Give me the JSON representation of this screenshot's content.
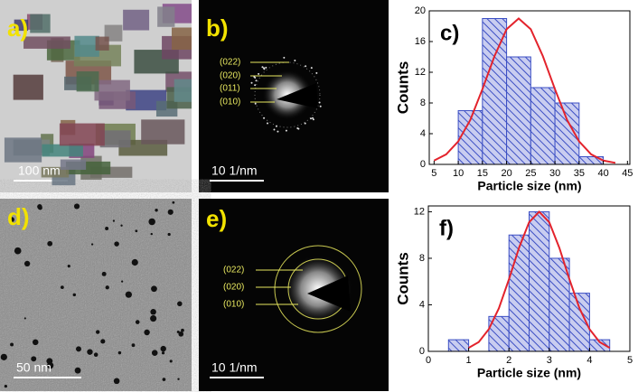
{
  "panels": [
    {
      "label": "a)",
      "scale": "100 nm"
    },
    {
      "label": "b)",
      "scale": "10 1/nm",
      "rings": [
        "(022)",
        "(020)",
        "(011)",
        "(010)"
      ]
    },
    {
      "label": "d)",
      "scale": "50 nm"
    },
    {
      "label": "e)",
      "scale": "10 1/nm",
      "rings": [
        "(022)",
        "(020)",
        "(010)"
      ]
    }
  ],
  "chart_data": [
    {
      "type": "histogram",
      "panel_label": "c)",
      "x_label": "Particle size (nm)",
      "y_label": "Counts",
      "bins": [
        10,
        15,
        20,
        25,
        30,
        35,
        40
      ],
      "counts": [
        7,
        19,
        14,
        10,
        8,
        1
      ],
      "color": "#3c4fc4",
      "fit": {
        "color": "#e3232c",
        "x": [
          5,
          7.5,
          10,
          12.5,
          15,
          17.5,
          20,
          22.5,
          25,
          27.5,
          30,
          32.5,
          35,
          37.5,
          40,
          42.5
        ],
        "values": [
          0.5,
          1.3,
          3.0,
          5.8,
          9.8,
          14.1,
          17.6,
          19,
          17.6,
          14.1,
          9.8,
          5.8,
          3.0,
          1.3,
          0.5,
          0.2
        ]
      },
      "xlim": [
        4,
        45.5
      ],
      "xticks": [
        5,
        10,
        15,
        20,
        25,
        30,
        35,
        40,
        45
      ],
      "ylim": [
        0,
        20
      ],
      "yticks": [
        0,
        4,
        8,
        12,
        16,
        20
      ]
    },
    {
      "type": "histogram",
      "panel_label": "f)",
      "x_label": "Particle size (nm)",
      "y_label": "Counts",
      "bins": [
        0.5,
        1,
        1.5,
        2,
        2.5,
        3,
        3.5,
        4,
        4.5
      ],
      "counts": [
        1,
        0,
        3,
        10,
        12,
        8,
        5,
        1
      ],
      "color": "#3c4fc4",
      "fit": {
        "color": "#e3232c",
        "x": [
          1,
          1.25,
          1.5,
          1.75,
          2,
          2.25,
          2.5,
          2.75,
          3,
          3.25,
          3.5,
          3.75,
          4,
          4.25,
          4.5
        ],
        "values": [
          0.3,
          0.8,
          1.9,
          3.7,
          6.2,
          8.9,
          11.1,
          12,
          11.1,
          8.9,
          6.2,
          3.7,
          1.9,
          0.8,
          0.3
        ]
      },
      "xlim": [
        0,
        5
      ],
      "xticks": [
        0,
        1,
        2,
        3,
        4,
        5
      ],
      "ylim": [
        0,
        12.5
      ],
      "yticks": [
        0,
        4,
        8,
        12
      ]
    }
  ]
}
